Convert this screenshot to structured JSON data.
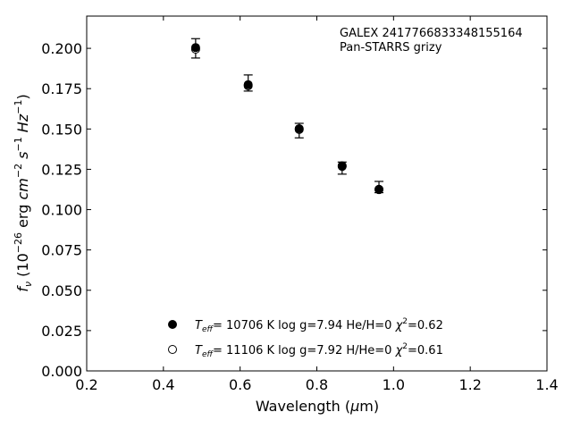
{
  "chart_data": {
    "type": "scatter",
    "xlabel_main": "Wavelength (",
    "xlabel_mu": "μ",
    "xlabel_end": "m)",
    "xlim": [
      0.2,
      1.4
    ],
    "ylim": [
      0.0,
      0.22
    ],
    "xticks": [
      "0.2",
      "0.4",
      "0.6",
      "0.8",
      "1.0",
      "1.2",
      "1.4"
    ],
    "yticks": [
      "0.000",
      "0.025",
      "0.050",
      "0.075",
      "0.100",
      "0.125",
      "0.150",
      "0.175",
      "0.200"
    ],
    "ylabel": {
      "f": "f",
      "nu": "ν",
      "open": " (10",
      "exp1": "−26",
      "erg": " erg ",
      "cm": "cm",
      "exp2": "−2",
      "s": " s",
      "exp3": "−1",
      "hz": " Hz",
      "exp4": "−1",
      "close": ")"
    },
    "annotations": [
      "GALEX 2417766833348155164",
      "Pan-STARRS grizy"
    ],
    "observed": {
      "x": [
        0.484,
        0.621,
        0.754,
        0.866,
        0.962
      ],
      "y": [
        0.2,
        0.1785,
        0.149,
        0.126,
        0.114
      ],
      "yerr_low": [
        0.194,
        0.1735,
        0.1445,
        0.122,
        0.1105
      ],
      "yerr_high": [
        0.206,
        0.1835,
        0.1535,
        0.1295,
        0.1175
      ]
    },
    "series": [
      {
        "name_parts": {
          "T": "T",
          "sub": "eff",
          "rest": "= 10706 K  log g=7.94  He/H=0  ",
          "chi": "χ",
          "sup": "2",
          "val": "=0.62"
        },
        "marker": "filled",
        "x": [
          0.484,
          0.621,
          0.754,
          0.866,
          0.962
        ],
        "y": [
          0.2005,
          0.1775,
          0.1502,
          0.1272,
          0.1126
        ]
      },
      {
        "name_parts": {
          "T": "T",
          "sub": "eff",
          "rest": "= 11106 K  log g=7.92  H/He=0  ",
          "chi": "χ",
          "sup": "2",
          "val": "=0.61"
        },
        "marker": "open",
        "x": [
          0.484,
          0.621,
          0.754,
          0.866,
          0.962
        ],
        "y": [
          0.1995,
          0.1768,
          0.1497,
          0.1268,
          0.1124
        ]
      }
    ],
    "colors": {
      "marker": "#000000",
      "axis": "#000000"
    }
  }
}
